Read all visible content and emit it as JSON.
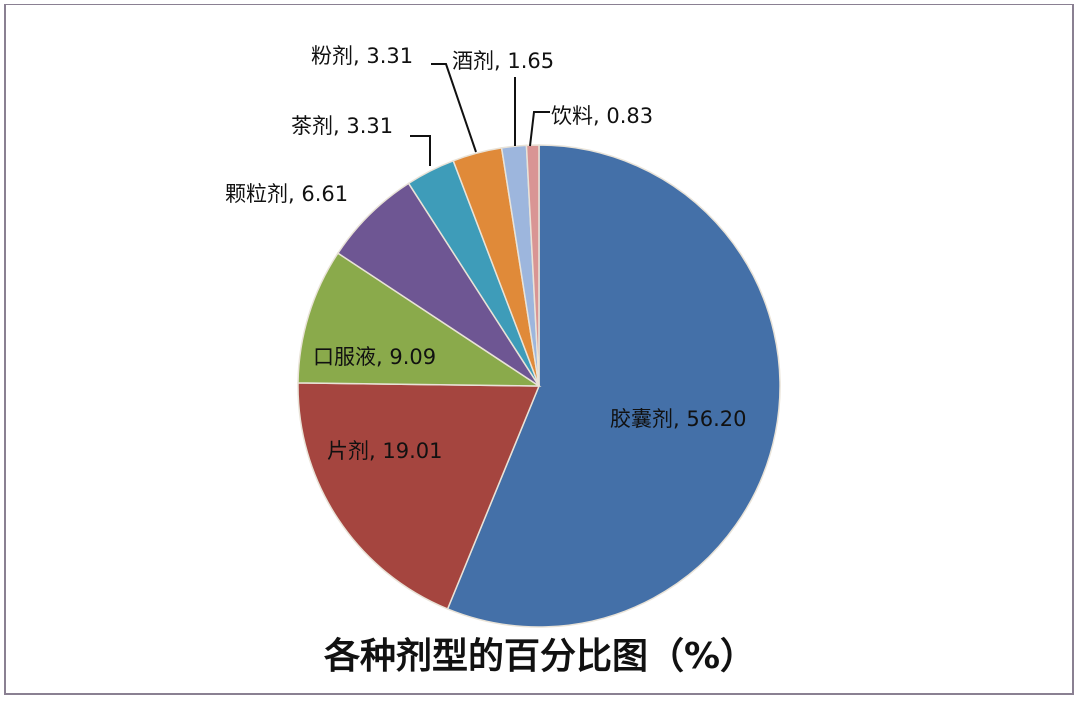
{
  "chart_data": {
    "type": "pie",
    "title": "各种剂型的百分比图（%）",
    "categories": [
      "胶囊剂",
      "片剂",
      "口服液",
      "颗粒剂",
      "茶剂",
      "粉剂",
      "酒剂",
      "饮料"
    ],
    "values": [
      56.2,
      19.01,
      9.09,
      6.61,
      3.31,
      3.31,
      1.65,
      0.83
    ],
    "colors": [
      "#4470a8",
      "#a5453f",
      "#8aaa4b",
      "#6e5693",
      "#3e9cb9",
      "#e08a39",
      "#9db6dd",
      "#d99594"
    ],
    "labels": [
      "胶囊剂, 56.20",
      "片剂, 19.01",
      "口服液, 9.09",
      "颗粒剂, 6.61",
      "茶剂, 3.31",
      "粉剂, 3.31",
      "酒剂, 1.65",
      "饮料, 0.83"
    ],
    "start_angle": "12 o'clock",
    "direction": "clockwise",
    "legend": "none (data labels on/around slices)"
  }
}
